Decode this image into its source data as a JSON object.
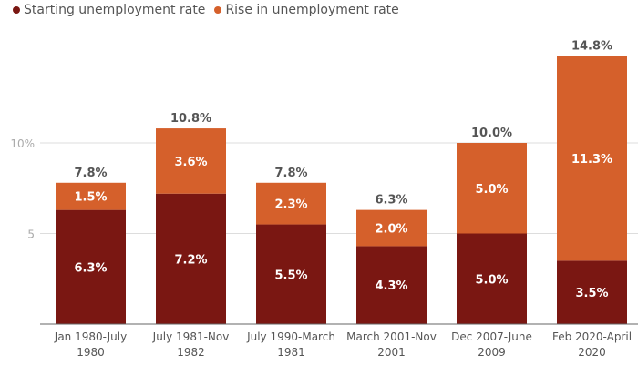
{
  "chart_data": {
    "type": "bar",
    "stacked": true,
    "title": "",
    "xlabel": "",
    "ylabel": "",
    "ylim": [
      0,
      15
    ],
    "yticks": [
      {
        "value": 5,
        "label": "5"
      },
      {
        "value": 10,
        "label": "10%"
      }
    ],
    "categories": [
      [
        "Jan 1980-July",
        "1980"
      ],
      [
        "July 1981-Nov",
        "1982"
      ],
      [
        "July 1990-March",
        "1981"
      ],
      [
        "March 2001-Nov",
        "2001"
      ],
      [
        "Dec 2007-June",
        "2009"
      ],
      [
        "Feb 2020-April",
        "2020"
      ]
    ],
    "series": [
      {
        "name": "Starting unemployment rate",
        "color": "#7a1712",
        "values": [
          6.3,
          7.2,
          5.5,
          4.3,
          5.0,
          3.5
        ],
        "labels": [
          "6.3%",
          "7.2%",
          "5.5%",
          "4.3%",
          "5.0%",
          "3.5%"
        ]
      },
      {
        "name": "Rise in unemployment rate",
        "color": "#d5602b",
        "values": [
          1.5,
          3.6,
          2.3,
          2.0,
          5.0,
          11.3
        ],
        "labels": [
          "1.5%",
          "3.6%",
          "2.3%",
          "2.0%",
          "5.0%",
          "11.3%"
        ]
      }
    ],
    "totals": [
      "7.8%",
      "10.8%",
      "7.8%",
      "6.3%",
      "10.0%",
      "14.8%"
    ],
    "legend_position": "top-left",
    "grid": true
  }
}
